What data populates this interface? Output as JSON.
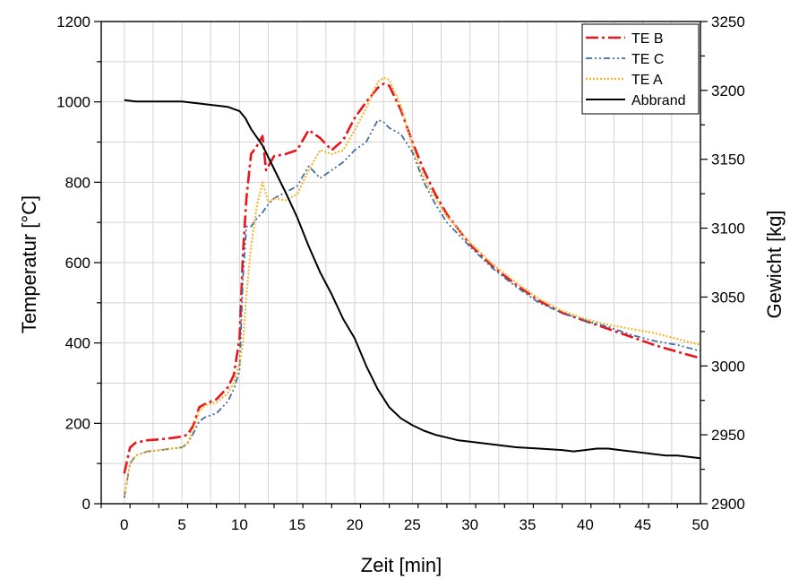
{
  "chart_data": {
    "type": "line",
    "xlabel": "Zeit [min]",
    "ylabel": "Temperatur [°C]",
    "y2label": "Gewicht [kg]",
    "xlim": [
      -2,
      50
    ],
    "ylim": [
      0,
      1200
    ],
    "y2lim": [
      2900,
      3250
    ],
    "x_ticks": [
      0,
      5,
      10,
      15,
      20,
      25,
      30,
      35,
      40,
      45,
      50
    ],
    "y_ticks": [
      0,
      200,
      400,
      600,
      800,
      1000,
      1200
    ],
    "y2_ticks": [
      2900,
      2950,
      3000,
      3050,
      3100,
      3150,
      3200,
      3250
    ],
    "grid": true,
    "legend_position": "top-right",
    "series": [
      {
        "name": "TE B",
        "axis": "left",
        "color": "#e8151b",
        "style": "dashdot",
        "x": [
          0,
          0.5,
          1,
          2,
          3,
          4,
          5,
          5.5,
          6,
          6.5,
          7,
          8,
          9,
          9.5,
          10,
          10.3,
          10.6,
          11,
          11.5,
          12,
          12.3,
          13,
          14,
          15,
          16,
          17,
          18,
          19,
          20,
          21,
          22,
          22.5,
          23,
          24,
          25,
          26,
          27,
          28,
          30,
          32,
          34,
          36,
          38,
          40,
          42,
          44,
          46,
          48,
          50
        ],
        "y": [
          75,
          140,
          152,
          158,
          160,
          163,
          167,
          172,
          195,
          240,
          248,
          260,
          290,
          320,
          410,
          620,
          760,
          870,
          890,
          915,
          830,
          865,
          870,
          880,
          930,
          910,
          880,
          905,
          960,
          1000,
          1035,
          1045,
          1040,
          980,
          900,
          830,
          770,
          720,
          645,
          590,
          545,
          505,
          475,
          455,
          435,
          415,
          395,
          378,
          362
        ]
      },
      {
        "name": "TE C",
        "axis": "left",
        "color": "#3f6fa5",
        "style": "dashdotdot",
        "x": [
          0,
          0.5,
          1,
          2,
          3,
          4,
          5,
          5.5,
          6,
          6.5,
          7,
          8,
          9,
          9.5,
          10,
          10.3,
          10.6,
          11,
          11.5,
          12,
          12.5,
          13,
          14,
          15,
          16,
          17,
          18,
          19,
          20,
          21,
          22,
          22.5,
          23,
          24,
          25,
          26,
          27,
          28,
          30,
          32,
          34,
          36,
          38,
          40,
          42,
          44,
          46,
          48,
          50
        ],
        "y": [
          15,
          100,
          120,
          130,
          133,
          137,
          140,
          150,
          175,
          205,
          215,
          225,
          255,
          285,
          330,
          560,
          690,
          690,
          710,
          725,
          745,
          760,
          775,
          790,
          840,
          810,
          830,
          850,
          880,
          900,
          955,
          950,
          935,
          920,
          875,
          800,
          745,
          700,
          640,
          585,
          540,
          500,
          475,
          455,
          440,
          420,
          405,
          395,
          380
        ]
      },
      {
        "name": "TE A",
        "axis": "left",
        "color": "#f7b52c",
        "style": "dotted",
        "x": [
          0,
          0.5,
          1,
          2,
          3,
          4,
          5,
          5.5,
          6,
          6.5,
          7,
          8,
          9,
          9.5,
          10,
          10.3,
          10.6,
          11,
          11.5,
          12,
          12.5,
          13,
          14,
          15,
          16,
          17,
          18,
          19,
          20,
          21,
          22,
          22.5,
          23,
          24,
          25,
          26,
          27,
          28,
          30,
          32,
          34,
          36,
          38,
          40,
          42,
          44,
          46,
          48,
          50
        ],
        "y": [
          20,
          100,
          120,
          130,
          133,
          137,
          140,
          152,
          185,
          230,
          245,
          252,
          275,
          300,
          350,
          400,
          520,
          640,
          740,
          800,
          750,
          760,
          755,
          770,
          830,
          880,
          870,
          880,
          930,
          985,
          1050,
          1060,
          1055,
          990,
          890,
          810,
          760,
          715,
          650,
          595,
          550,
          510,
          480,
          460,
          445,
          435,
          425,
          410,
          395
        ]
      },
      {
        "name": "Abbrand",
        "axis": "right",
        "color": "#000000",
        "style": "solid",
        "x": [
          0,
          1,
          2,
          3,
          4,
          5,
          6,
          7,
          8,
          9,
          10,
          10.5,
          11,
          12,
          13,
          14,
          15,
          16,
          17,
          18,
          19,
          20,
          21,
          22,
          23,
          24,
          25,
          26,
          27,
          28,
          29,
          30,
          32,
          34,
          36,
          38,
          39,
          40,
          41,
          42,
          43,
          44,
          45,
          46,
          47,
          48,
          49,
          50
        ],
        "y": [
          3193,
          3192,
          3192,
          3192,
          3192,
          3192,
          3191,
          3190,
          3189,
          3188,
          3185,
          3180,
          3172,
          3160,
          3143,
          3126,
          3108,
          3087,
          3068,
          3052,
          3034,
          3020,
          3000,
          2983,
          2970,
          2962,
          2957,
          2953,
          2950,
          2948,
          2946,
          2945,
          2943,
          2941,
          2940,
          2939,
          2938,
          2939,
          2940,
          2940,
          2939,
          2938,
          2937,
          2936,
          2935,
          2935,
          2934,
          2933
        ]
      }
    ]
  }
}
